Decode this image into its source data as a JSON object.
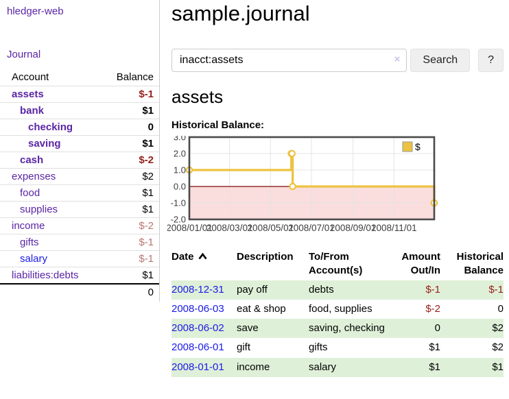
{
  "app": {
    "title": "hledger-web",
    "nav_journal_label": "Journal"
  },
  "sidebar": {
    "header": {
      "account": "Account",
      "balance": "Balance"
    },
    "accounts": [
      {
        "name": "assets",
        "balance": "$-1",
        "indent": 1,
        "bold": true,
        "tone": "neg-strong",
        "link": "purple"
      },
      {
        "name": "bank",
        "balance": "$1",
        "indent": 2,
        "bold": true,
        "tone": "",
        "link": "purple"
      },
      {
        "name": "checking",
        "balance": "0",
        "indent": 3,
        "bold": true,
        "tone": "",
        "link": "purple"
      },
      {
        "name": "saving",
        "balance": "$1",
        "indent": 3,
        "bold": true,
        "tone": "",
        "link": "purple"
      },
      {
        "name": "cash",
        "balance": "$-2",
        "indent": 2,
        "bold": true,
        "tone": "neg-strong",
        "link": "purple"
      },
      {
        "name": "expenses",
        "balance": "$2",
        "indent": 1,
        "bold": false,
        "tone": "",
        "link": "purple"
      },
      {
        "name": "food",
        "balance": "$1",
        "indent": 2,
        "bold": false,
        "tone": "",
        "link": "purple"
      },
      {
        "name": "supplies",
        "balance": "$1",
        "indent": 2,
        "bold": false,
        "tone": "",
        "link": "purple"
      },
      {
        "name": "income",
        "balance": "$-2",
        "indent": 1,
        "bold": false,
        "tone": "neg-soft",
        "link": "purple"
      },
      {
        "name": "gifts",
        "balance": "$-1",
        "indent": 2,
        "bold": false,
        "tone": "neg-soft",
        "link": "purple"
      },
      {
        "name": "salary",
        "balance": "$-1",
        "indent": 2,
        "bold": false,
        "tone": "neg-soft",
        "link": "blue"
      },
      {
        "name": "liabilities:debts",
        "balance": "$1",
        "indent": 1,
        "bold": false,
        "tone": "",
        "link": "purple"
      }
    ],
    "total": "0"
  },
  "header": {
    "title": "sample.journal",
    "search_value": "inacct:assets",
    "clear_icon": "×",
    "search_button_label": "Search",
    "help_button_label": "?"
  },
  "account_page": {
    "title": "assets",
    "chart_heading": "Historical Balance:"
  },
  "chart_data": {
    "type": "line",
    "title": "Historical Balance:",
    "step": true,
    "series": [
      {
        "name": "$",
        "color": "#edc240",
        "points": [
          {
            "date": "2008/01/01",
            "value": 1
          },
          {
            "date": "2008/06/01",
            "value": 2
          },
          {
            "date": "2008/06/02",
            "value": 2
          },
          {
            "date": "2008/06/03",
            "value": 0
          },
          {
            "date": "2008/12/31",
            "value": -1
          }
        ]
      }
    ],
    "x_ticks": [
      "2008/01/01",
      "2008/03/01",
      "2008/05/01",
      "2008/07/01",
      "2008/09/01",
      "2008/11/01"
    ],
    "y_ticks": [
      3.0,
      2.0,
      1.0,
      0.0,
      -1.0,
      -2.0
    ],
    "ylim": [
      -2,
      3
    ],
    "grid": true,
    "legend_position": "top-right",
    "colors": {
      "line": "#edc240",
      "grid": "#e4e4e4",
      "border": "#4a4a4a",
      "negative_region": "#fadddd",
      "zero_line": "#7a0b0b",
      "tick_text": "#3c3c3c"
    }
  },
  "register": {
    "headers": [
      {
        "label": "Date",
        "sorted": true
      },
      {
        "label": "Description"
      },
      {
        "label": "To/From Account(s)"
      },
      {
        "label": "Amount Out/In",
        "align": "right"
      },
      {
        "label": "Historical Balance",
        "align": "right"
      }
    ],
    "rows": [
      {
        "date": "2008-12-31",
        "description": "pay off",
        "accounts": "debts",
        "amount": "$-1",
        "amount_neg": true,
        "balance": "$-1",
        "balance_neg": true,
        "green": true
      },
      {
        "date": "2008-06-03",
        "description": "eat & shop",
        "accounts": "food, supplies",
        "amount": "$-2",
        "amount_neg": true,
        "balance": "0",
        "balance_neg": false,
        "green": false
      },
      {
        "date": "2008-06-02",
        "description": "save",
        "accounts": "saving, checking",
        "amount": "0",
        "amount_neg": false,
        "balance": "$2",
        "balance_neg": false,
        "green": true
      },
      {
        "date": "2008-06-01",
        "description": "gift",
        "accounts": "gifts",
        "amount": "$1",
        "amount_neg": false,
        "balance": "$2",
        "balance_neg": false,
        "green": false
      },
      {
        "date": "2008-01-01",
        "description": "income",
        "accounts": "salary",
        "amount": "$1",
        "amount_neg": false,
        "balance": "$1",
        "balance_neg": false,
        "green": true
      }
    ]
  }
}
